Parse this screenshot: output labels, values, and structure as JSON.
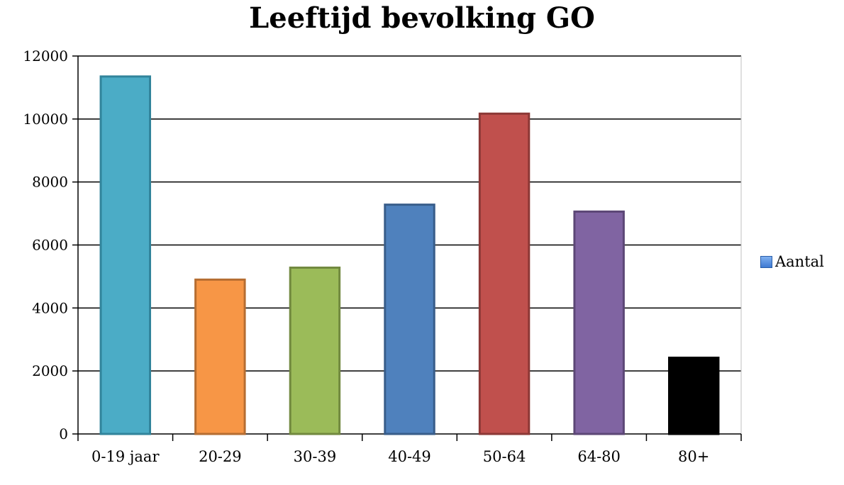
{
  "chart_data": {
    "type": "bar",
    "title": "Leeftijd bevolking GO",
    "xlabel": "",
    "ylabel": "",
    "categories": [
      "0-19 jaar",
      "20-29",
      "30-39",
      "40-49",
      "50-64",
      "64-80",
      "80+"
    ],
    "series": [
      {
        "name": "Aantal",
        "values": [
          11350,
          4900,
          5280,
          7280,
          10170,
          7060,
          2420
        ]
      }
    ],
    "bar_colors": [
      "#4bacc6",
      "#f79646",
      "#9bbb59",
      "#4f81bd",
      "#c0504d",
      "#8064a2",
      "#000000"
    ],
    "bar_borders": [
      "#31849b",
      "#b66d31",
      "#71893f",
      "#385d8a",
      "#8c3836",
      "#5c4776",
      "#000000"
    ],
    "ylim": [
      0,
      12000
    ],
    "yticks": [
      0,
      2000,
      4000,
      6000,
      8000,
      10000,
      12000
    ],
    "grid": true,
    "legend_position": "right"
  }
}
